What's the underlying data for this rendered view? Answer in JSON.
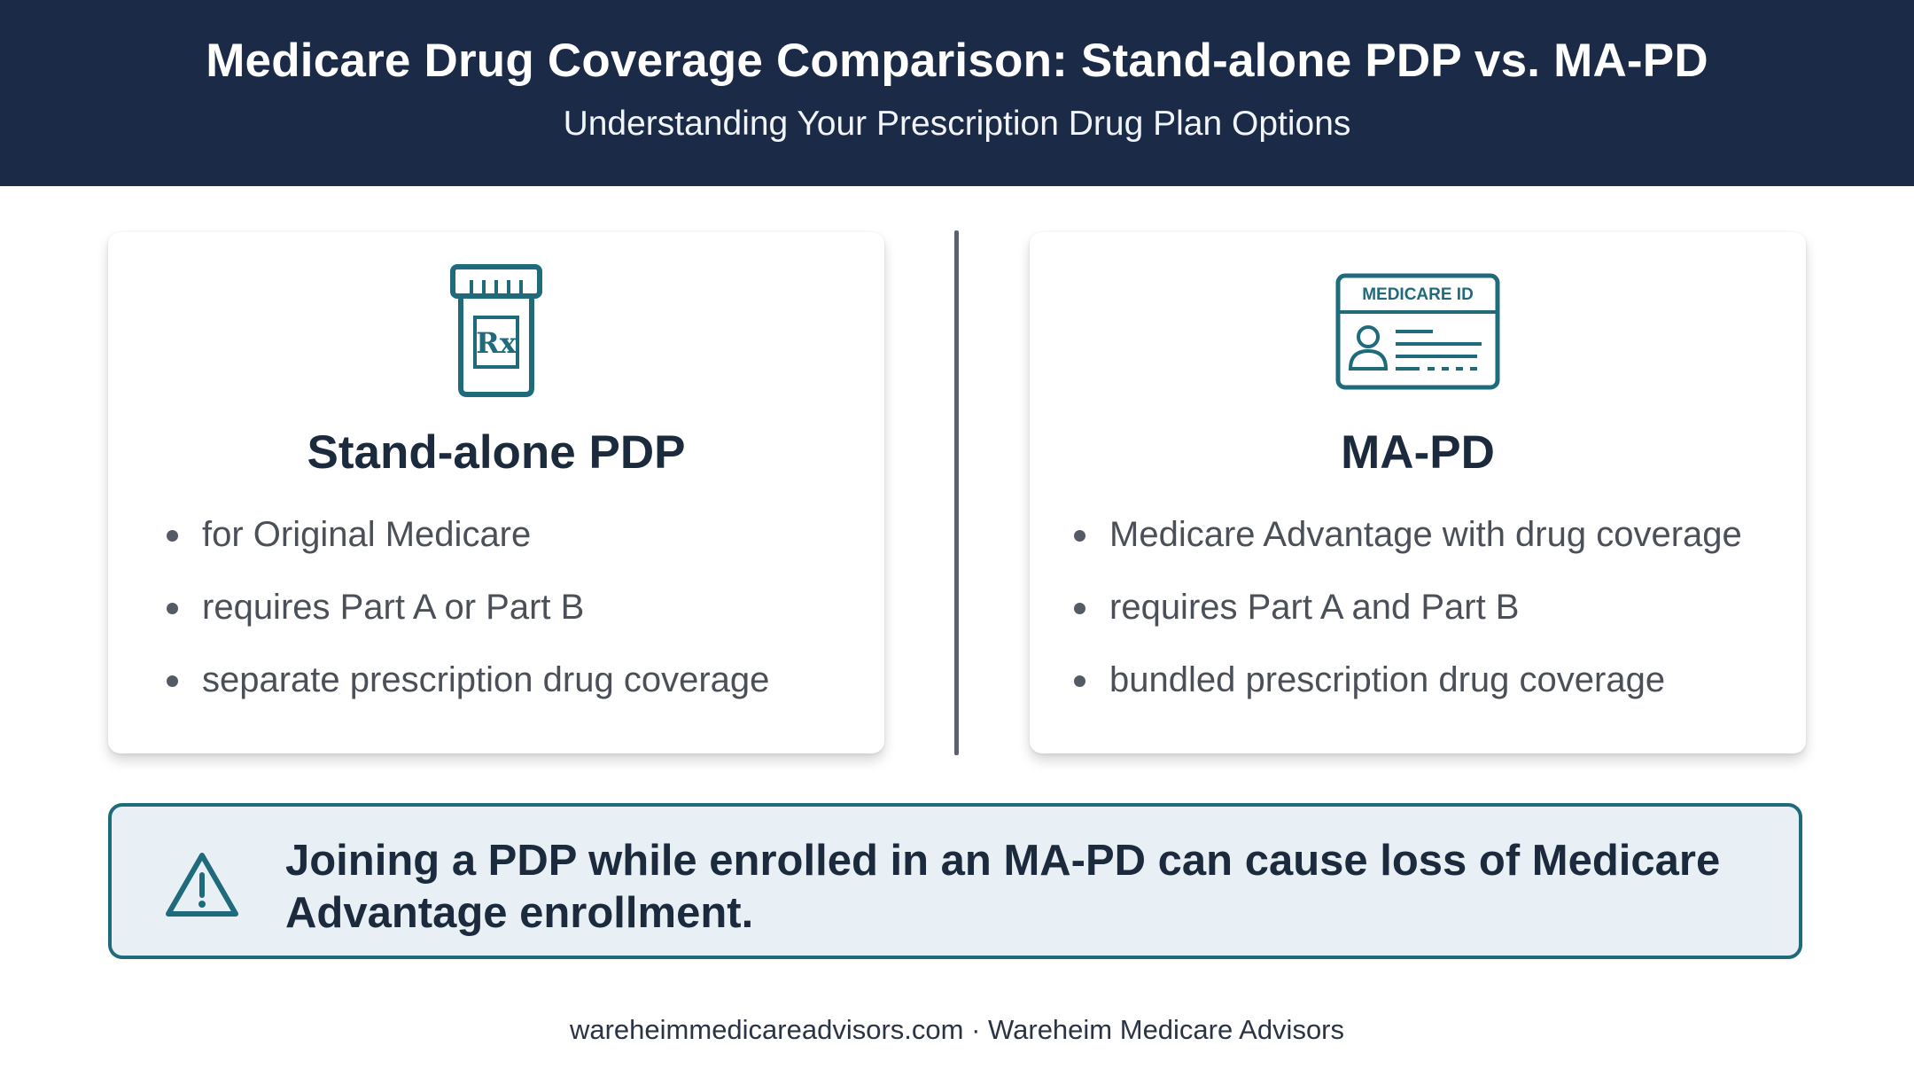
{
  "header": {
    "title": "Medicare Drug Coverage Comparison: Stand-alone PDP vs. MA-PD",
    "subtitle": "Understanding Your Prescription Drug Plan Options"
  },
  "cards": [
    {
      "icon": "prescription-bottle-icon",
      "icon_text": "Rx",
      "title": "Stand-alone PDP",
      "bullets": [
        "for Original Medicare",
        "requires Part A or Part B",
        "separate prescription drug coverage"
      ]
    },
    {
      "icon": "medicare-id-card-icon",
      "icon_text": "MEDICARE ID",
      "title": "MA-PD",
      "bullets": [
        "Medicare Advantage with drug coverage",
        "requires Part A and Part B",
        "bundled prescription drug coverage"
      ]
    }
  ],
  "warning": {
    "icon": "warning-triangle-icon",
    "text": "Joining a PDP while enrolled in an MA-PD can cause loss of Medicare Advantage enrollment."
  },
  "footer": {
    "text": "wareheimmedicareadvisors.com · Wareheim Medicare Advisors"
  },
  "colors": {
    "header_bg": "#1b2a46",
    "accent_teal": "#1f6b7c",
    "warning_bg": "#e9f0f5",
    "title_text": "#1b2a3d"
  }
}
